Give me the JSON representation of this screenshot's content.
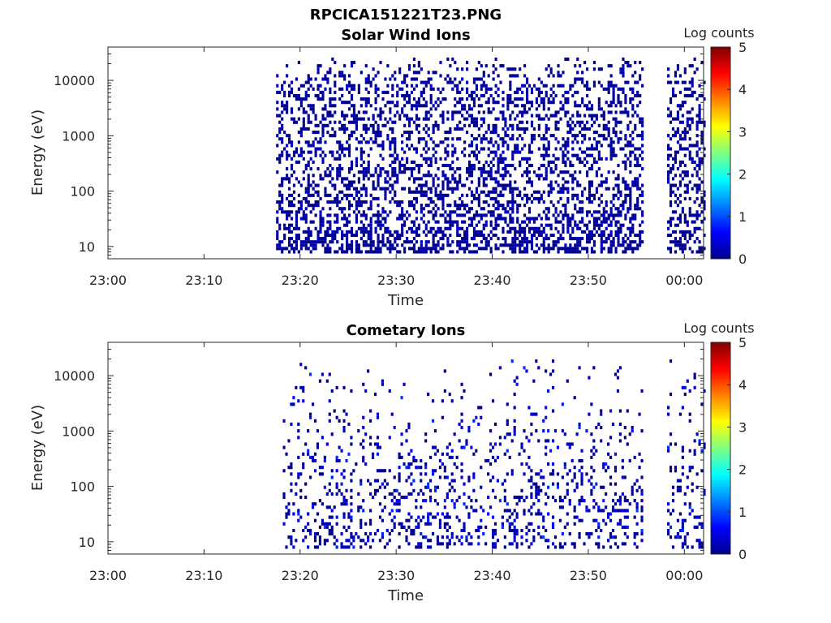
{
  "figure": {
    "title": "RPCICA151221T23.PNG"
  },
  "colors": {
    "axis": "#262626",
    "colorbar_stops": [
      "#00008f",
      "#0000ff",
      "#0080ff",
      "#00ffff",
      "#80ff80",
      "#ffff00",
      "#ff8000",
      "#ff0000",
      "#800000"
    ]
  },
  "chart_data": [
    {
      "type": "heatmap",
      "title": "Solar Wind Ions",
      "xlabel": "Time",
      "ylabel": "Energy (eV)",
      "x_ticks": [
        "23:00",
        "23:10",
        "23:20",
        "23:30",
        "23:40",
        "23:50",
        "00:00"
      ],
      "x_range_minutes": [
        0,
        62
      ],
      "y_scale": "log",
      "y_ticks": [
        "10",
        "100",
        "1000",
        "10000"
      ],
      "y_range": [
        6,
        40000
      ],
      "colorbar": {
        "label": "Log counts",
        "ticks": [
          "0",
          "1",
          "2",
          "3",
          "4",
          "5"
        ],
        "range": [
          0,
          5
        ]
      },
      "data_segments_minutes": [
        [
          17.5,
          55.7
        ],
        [
          58.2,
          62
        ]
      ],
      "occupancy_by_log_energy": [
        [
          0.8,
          0.55
        ],
        [
          1.3,
          0.45
        ],
        [
          1.8,
          0.38
        ],
        [
          2.3,
          0.35
        ],
        [
          2.8,
          0.33
        ],
        [
          3.3,
          0.33
        ],
        [
          3.8,
          0.33
        ],
        [
          4.1,
          0.22
        ],
        [
          4.4,
          0.05
        ]
      ],
      "typical_log_counts": [
        0,
        0.3
      ],
      "legend": "right-colorbar",
      "grid": false
    },
    {
      "type": "heatmap",
      "title": "Cometary Ions",
      "xlabel": "Time",
      "ylabel": "Energy (eV)",
      "x_ticks": [
        "23:00",
        "23:10",
        "23:20",
        "23:30",
        "23:40",
        "23:50",
        "00:00"
      ],
      "x_range_minutes": [
        0,
        62
      ],
      "y_scale": "log",
      "y_ticks": [
        "10",
        "100",
        "1000",
        "10000"
      ],
      "y_range": [
        6,
        40000
      ],
      "colorbar": {
        "label": "Log counts",
        "ticks": [
          "0",
          "1",
          "2",
          "3",
          "4",
          "5"
        ],
        "range": [
          0,
          5
        ]
      },
      "data_segments_minutes": [
        [
          18.2,
          55.7
        ],
        [
          58.2,
          62
        ]
      ],
      "occupancy_by_log_energy": [
        [
          0.8,
          0.25
        ],
        [
          1.3,
          0.22
        ],
        [
          1.8,
          0.2
        ],
        [
          2.3,
          0.16
        ],
        [
          2.8,
          0.09
        ],
        [
          3.3,
          0.05
        ],
        [
          3.8,
          0.04
        ],
        [
          4.1,
          0.03
        ],
        [
          4.3,
          0.01
        ]
      ],
      "typical_log_counts": [
        0,
        0.9
      ],
      "legend": "right-colorbar",
      "grid": false
    }
  ]
}
